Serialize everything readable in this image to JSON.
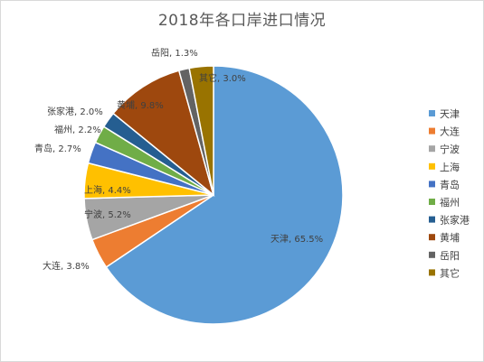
{
  "chart_data": {
    "type": "pie",
    "title": "2018年各口岸进口情况",
    "categories": [
      "天津",
      "大连",
      "宁波",
      "上海",
      "青岛",
      "福州",
      "张家港",
      "黄埔",
      "岳阳",
      "其它"
    ],
    "values": [
      65.5,
      3.8,
      5.2,
      4.4,
      2.7,
      2.2,
      2.0,
      9.8,
      1.3,
      3.0
    ],
    "labels": [
      "天津, 65.5%",
      "大连, 3.8%",
      "宁波, 5.2%",
      "上海, 4.4%",
      "青岛, 2.7%",
      "福州, 2.2%",
      "张家港, 2.0%",
      "黄埔, 9.8%",
      "岳阳, 1.3%",
      "其它, 3.0%"
    ],
    "colors": [
      "#5b9bd5",
      "#ed7d31",
      "#a5a5a5",
      "#ffc000",
      "#4472c4",
      "#70ad47",
      "#255e91",
      "#9e480e",
      "#636363",
      "#997300"
    ],
    "legend_position": "right"
  }
}
